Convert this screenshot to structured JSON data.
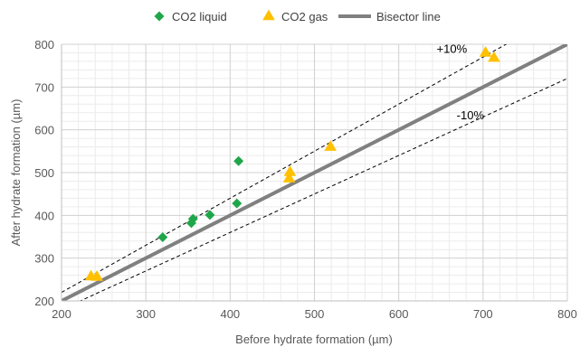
{
  "chart_data": {
    "type": "scatter",
    "xlabel": "Before hydrate formation (µm)",
    "ylabel": "After hydrate formation (µm)",
    "xlim": [
      200,
      800
    ],
    "ylim": [
      200,
      800
    ],
    "x_ticks": [
      200,
      300,
      400,
      500,
      600,
      700,
      800
    ],
    "y_ticks": [
      200,
      300,
      400,
      500,
      600,
      700,
      800
    ],
    "grid": true,
    "legend_position": "top",
    "series": [
      {
        "name": "CO2 liquid",
        "marker": "diamond",
        "color": "#1fa64a",
        "points": [
          {
            "x": 320,
            "y": 349
          },
          {
            "x": 354,
            "y": 382
          },
          {
            "x": 356,
            "y": 392
          },
          {
            "x": 376,
            "y": 401
          },
          {
            "x": 408,
            "y": 428
          },
          {
            "x": 410,
            "y": 527
          }
        ]
      },
      {
        "name": "CO2 gas",
        "marker": "triangle",
        "color": "#ffc000",
        "points": [
          {
            "x": 235,
            "y": 259
          },
          {
            "x": 242,
            "y": 258
          },
          {
            "x": 470,
            "y": 488
          },
          {
            "x": 471,
            "y": 503
          },
          {
            "x": 519,
            "y": 562
          },
          {
            "x": 703,
            "y": 782
          },
          {
            "x": 713,
            "y": 770
          }
        ]
      },
      {
        "name": "Bisector line",
        "type": "line",
        "color": "#808080",
        "x": [
          200,
          800
        ],
        "y": [
          200,
          800
        ]
      }
    ],
    "reference_lines": [
      {
        "label": "+10%",
        "factor": 1.1,
        "style": "dashed",
        "color": "#000000"
      },
      {
        "label": "-10%",
        "factor": 0.9,
        "style": "dashed",
        "color": "#000000"
      }
    ]
  }
}
